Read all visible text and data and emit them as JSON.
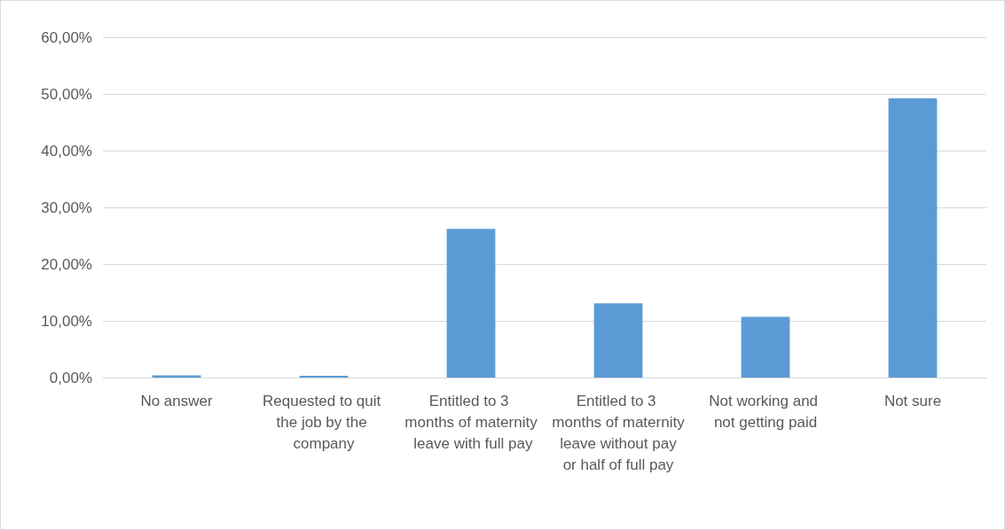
{
  "chart_data": {
    "type": "bar",
    "categories": [
      "No answer",
      "Requested to quit the job by the company",
      "Entitled to 3 months of maternity leave with full pay",
      "Entitled to 3 months of maternity leave without pay or half of full pay",
      "Not working and not getting paid",
      "Not sure"
    ],
    "values": [
      0.4,
      0.3,
      26.2,
      13.1,
      10.7,
      49.2
    ],
    "color": "#5b9bd5",
    "ylim": [
      0,
      60
    ],
    "yticks": [
      {
        "value": 0,
        "label": "0,00%"
      },
      {
        "value": 10,
        "label": "10,00%"
      },
      {
        "value": 20,
        "label": "20,00%"
      },
      {
        "value": 30,
        "label": "30,00%"
      },
      {
        "value": 40,
        "label": "40,00%"
      },
      {
        "value": 50,
        "label": "50,00%"
      },
      {
        "value": 60,
        "label": "60,00%"
      }
    ],
    "grid": true
  }
}
